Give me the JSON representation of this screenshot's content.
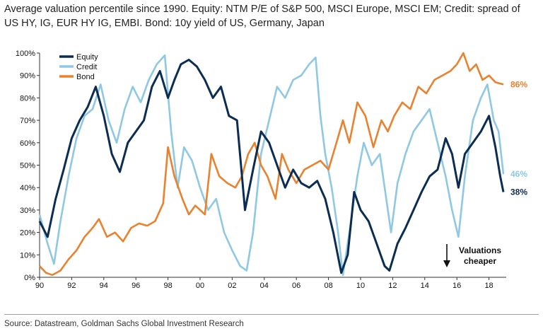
{
  "title": "Average valuation percentile since 1990. Equity: NTM P/E of S&P 500, MSCI Europe, MSCI EM; Credit: spread of US HY, IG, EUR HY IG, EMBI. Bond: 10y yield of US, Germany, Japan",
  "source": "Source: Datastream, Goldman Sachs Global Investment Research",
  "colors": {
    "equity": "#0c2d52",
    "credit": "#8fc8e3",
    "bond": "#e9822f"
  },
  "chart_data": {
    "type": "line",
    "xlim": [
      1990,
      2018.9
    ],
    "ylim": [
      0,
      100
    ],
    "x_ticks": [
      {
        "value": 1990,
        "label": "90"
      },
      {
        "value": 1992,
        "label": "92"
      },
      {
        "value": 1994,
        "label": "94"
      },
      {
        "value": 1996,
        "label": "96"
      },
      {
        "value": 1998,
        "label": "98"
      },
      {
        "value": 2000,
        "label": "00"
      },
      {
        "value": 2002,
        "label": "02"
      },
      {
        "value": 2004,
        "label": "04"
      },
      {
        "value": 2006,
        "label": "06"
      },
      {
        "value": 2008,
        "label": "08"
      },
      {
        "value": 2010,
        "label": "10"
      },
      {
        "value": 2012,
        "label": "12"
      },
      {
        "value": 2014,
        "label": "14"
      },
      {
        "value": 2016,
        "label": "16"
      },
      {
        "value": 2018,
        "label": "18"
      }
    ],
    "y_ticks": [
      {
        "value": 0,
        "label": "0%"
      },
      {
        "value": 10,
        "label": "10%"
      },
      {
        "value": 20,
        "label": "20%"
      },
      {
        "value": 30,
        "label": "30%"
      },
      {
        "value": 40,
        "label": "40%"
      },
      {
        "value": 50,
        "label": "50%"
      },
      {
        "value": 60,
        "label": "60%"
      },
      {
        "value": 70,
        "label": "70%"
      },
      {
        "value": 80,
        "label": "80%"
      },
      {
        "value": 90,
        "label": "90%"
      },
      {
        "value": 100,
        "label": "100%"
      }
    ],
    "series": [
      {
        "name": "Equity",
        "color": "#0c2d52",
        "end_label": "38%",
        "points": [
          [
            1990,
            25
          ],
          [
            1990.5,
            18
          ],
          [
            1991,
            35
          ],
          [
            1991.5,
            48
          ],
          [
            1992,
            62
          ],
          [
            1992.5,
            70
          ],
          [
            1993,
            76
          ],
          [
            1993.5,
            85
          ],
          [
            1994,
            72
          ],
          [
            1994.5,
            55
          ],
          [
            1995,
            47
          ],
          [
            1995.5,
            60
          ],
          [
            1996,
            65
          ],
          [
            1996.5,
            70
          ],
          [
            1997,
            85
          ],
          [
            1997.5,
            92
          ],
          [
            1998,
            80
          ],
          [
            1998.4,
            88
          ],
          [
            1998.8,
            95
          ],
          [
            1999.3,
            97
          ],
          [
            1999.8,
            94
          ],
          [
            2000.3,
            88
          ],
          [
            2000.8,
            80
          ],
          [
            2001.3,
            85
          ],
          [
            2001.8,
            72
          ],
          [
            2002.3,
            70
          ],
          [
            2002.8,
            30
          ],
          [
            2003.3,
            48
          ],
          [
            2003.8,
            65
          ],
          [
            2004.3,
            60
          ],
          [
            2004.8,
            50
          ],
          [
            2005.3,
            40
          ],
          [
            2005.8,
            48
          ],
          [
            2006.3,
            42
          ],
          [
            2006.8,
            40
          ],
          [
            2007.3,
            43
          ],
          [
            2007.8,
            35
          ],
          [
            2008.3,
            20
          ],
          [
            2008.8,
            2
          ],
          [
            2009.2,
            10
          ],
          [
            2009.6,
            38
          ],
          [
            2010,
            30
          ],
          [
            2010.5,
            25
          ],
          [
            2011,
            15
          ],
          [
            2011.5,
            5
          ],
          [
            2011.8,
            3
          ],
          [
            2012.3,
            15
          ],
          [
            2012.8,
            22
          ],
          [
            2013.3,
            30
          ],
          [
            2013.8,
            38
          ],
          [
            2014.3,
            45
          ],
          [
            2014.8,
            48
          ],
          [
            2015.3,
            62
          ],
          [
            2015.7,
            55
          ],
          [
            2016.1,
            40
          ],
          [
            2016.5,
            55
          ],
          [
            2017,
            60
          ],
          [
            2017.5,
            65
          ],
          [
            2018,
            72
          ],
          [
            2018.4,
            58
          ],
          [
            2018.7,
            45
          ],
          [
            2018.9,
            38
          ]
        ]
      },
      {
        "name": "Credit",
        "color": "#8fc8e3",
        "end_label": "46%",
        "points": [
          [
            1990,
            28
          ],
          [
            1990.5,
            15
          ],
          [
            1990.9,
            6
          ],
          [
            1991.3,
            25
          ],
          [
            1991.8,
            45
          ],
          [
            1992.3,
            62
          ],
          [
            1992.8,
            72
          ],
          [
            1993.3,
            75
          ],
          [
            1993.8,
            86
          ],
          [
            1994.3,
            70
          ],
          [
            1994.8,
            60
          ],
          [
            1995.3,
            75
          ],
          [
            1995.8,
            85
          ],
          [
            1996.3,
            78
          ],
          [
            1996.8,
            88
          ],
          [
            1997.3,
            95
          ],
          [
            1997.8,
            99
          ],
          [
            1998.2,
            65
          ],
          [
            1998.6,
            40
          ],
          [
            1999,
            58
          ],
          [
            1999.5,
            52
          ],
          [
            2000,
            40
          ],
          [
            2000.5,
            30
          ],
          [
            2001,
            35
          ],
          [
            2001.5,
            20
          ],
          [
            2002,
            12
          ],
          [
            2002.5,
            5
          ],
          [
            2002.9,
            3
          ],
          [
            2003.3,
            20
          ],
          [
            2003.8,
            55
          ],
          [
            2004.3,
            70
          ],
          [
            2004.8,
            85
          ],
          [
            2005.3,
            80
          ],
          [
            2005.8,
            88
          ],
          [
            2006.3,
            90
          ],
          [
            2006.8,
            95
          ],
          [
            2007.2,
            98
          ],
          [
            2007.5,
            72
          ],
          [
            2007.8,
            55
          ],
          [
            2008.2,
            40
          ],
          [
            2008.6,
            20
          ],
          [
            2008.9,
            1
          ],
          [
            2009.3,
            20
          ],
          [
            2009.8,
            45
          ],
          [
            2010.2,
            60
          ],
          [
            2010.7,
            50
          ],
          [
            2011.2,
            55
          ],
          [
            2011.6,
            35
          ],
          [
            2011.9,
            20
          ],
          [
            2012.3,
            42
          ],
          [
            2012.8,
            55
          ],
          [
            2013.3,
            65
          ],
          [
            2013.8,
            70
          ],
          [
            2014.3,
            75
          ],
          [
            2014.8,
            60
          ],
          [
            2015.3,
            45
          ],
          [
            2015.7,
            30
          ],
          [
            2016.1,
            18
          ],
          [
            2016.5,
            45
          ],
          [
            2017,
            70
          ],
          [
            2017.5,
            80
          ],
          [
            2017.9,
            86
          ],
          [
            2018.3,
            70
          ],
          [
            2018.6,
            65
          ],
          [
            2018.9,
            46
          ]
        ]
      },
      {
        "name": "Bond",
        "color": "#e9822f",
        "end_label": "86%",
        "points": [
          [
            1990,
            5
          ],
          [
            1990.4,
            2
          ],
          [
            1990.8,
            1
          ],
          [
            1991.3,
            3
          ],
          [
            1991.8,
            8
          ],
          [
            1992.3,
            12
          ],
          [
            1992.8,
            18
          ],
          [
            1993.3,
            22
          ],
          [
            1993.7,
            26
          ],
          [
            1994.2,
            18
          ],
          [
            1994.7,
            20
          ],
          [
            1995.2,
            16
          ],
          [
            1995.7,
            22
          ],
          [
            1996.2,
            24
          ],
          [
            1996.7,
            23
          ],
          [
            1997.2,
            25
          ],
          [
            1997.7,
            33
          ],
          [
            1998,
            58
          ],
          [
            1998.4,
            45
          ],
          [
            1998.9,
            35
          ],
          [
            1999.3,
            28
          ],
          [
            1999.7,
            32
          ],
          [
            2000.3,
            28
          ],
          [
            2000.7,
            55
          ],
          [
            2001.2,
            45
          ],
          [
            2001.7,
            42
          ],
          [
            2002.2,
            40
          ],
          [
            2002.6,
            45
          ],
          [
            2003,
            55
          ],
          [
            2003.4,
            60
          ],
          [
            2003.8,
            50
          ],
          [
            2004.2,
            45
          ],
          [
            2004.7,
            35
          ],
          [
            2005.1,
            55
          ],
          [
            2005.5,
            48
          ],
          [
            2006,
            42
          ],
          [
            2006.5,
            48
          ],
          [
            2007,
            50
          ],
          [
            2007.5,
            52
          ],
          [
            2008,
            48
          ],
          [
            2008.5,
            60
          ],
          [
            2008.9,
            70
          ],
          [
            2009.3,
            60
          ],
          [
            2009.8,
            78
          ],
          [
            2010.3,
            72
          ],
          [
            2010.8,
            58
          ],
          [
            2011.3,
            70
          ],
          [
            2011.7,
            65
          ],
          [
            2012.1,
            72
          ],
          [
            2012.6,
            78
          ],
          [
            2013.1,
            75
          ],
          [
            2013.6,
            85
          ],
          [
            2014.1,
            82
          ],
          [
            2014.6,
            88
          ],
          [
            2015.1,
            90
          ],
          [
            2015.6,
            92
          ],
          [
            2016,
            95
          ],
          [
            2016.4,
            100
          ],
          [
            2016.8,
            92
          ],
          [
            2017.2,
            95
          ],
          [
            2017.6,
            88
          ],
          [
            2018,
            90
          ],
          [
            2018.4,
            87
          ],
          [
            2018.9,
            86
          ]
        ]
      }
    ],
    "annotation": {
      "lines": [
        "Valuations",
        "cheaper"
      ],
      "arrow": "down"
    },
    "legend": {
      "position": "top-left",
      "entries": [
        "Equity",
        "Credit",
        "Bond"
      ]
    },
    "grid": false
  }
}
